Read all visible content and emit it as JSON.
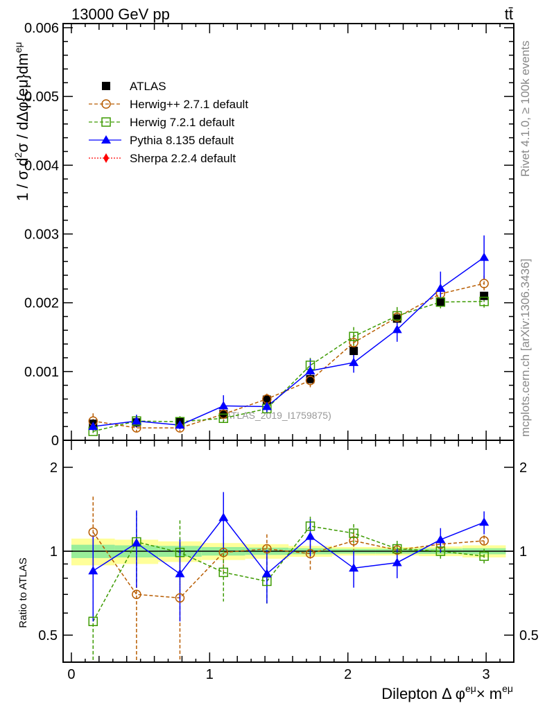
{
  "header": {
    "title": "13000 GeV pp",
    "process": "tt̄"
  },
  "side_text": {
    "rivet": "Rivet 4.1.0, ≥ 100k events",
    "mcplots": "mcplots.cern.ch [arXiv:1306.3436]"
  },
  "watermark": "(ATLAS_2019_I1759875)",
  "chart_data": [
    {
      "type": "scatter",
      "panel": "main",
      "ylabel_parts": [
        "1 / σ d",
        "2",
        "σ / dΔφ{eμ}dm",
        "eμ"
      ],
      "ylim": [
        0,
        0.00606
      ],
      "yticks": [
        0,
        0.001,
        0.002,
        0.003,
        0.004,
        0.005,
        0.006
      ],
      "ytick_labels": [
        "0",
        "0.001",
        "0.002",
        "0.003",
        "0.004",
        "0.005",
        "0.006"
      ],
      "xlim": [
        -0.06,
        3.2
      ],
      "x": [
        0.157,
        0.471,
        0.785,
        1.1,
        1.414,
        1.728,
        2.042,
        2.356,
        2.67,
        2.985
      ],
      "legend_position": "top-left",
      "series": [
        {
          "name": "ATLAS",
          "color": "#000000",
          "marker": "filled-square",
          "line": "none",
          "values": [
            0.00024,
            0.00026,
            0.00027,
            0.00038,
            0.00059,
            0.00089,
            0.0013,
            0.00177,
            0.00201,
            0.0021
          ]
        },
        {
          "name": "Herwig++ 2.7.1 default",
          "color": "#b85c00",
          "marker": "open-circle",
          "line": "dashed",
          "values": [
            0.00028,
            0.00018,
            0.00018,
            0.00038,
            0.0006,
            0.00087,
            0.00142,
            0.00179,
            0.00213,
            0.00228
          ]
        },
        {
          "name": "Herwig 7.2.1 default",
          "color": "#3c9a00",
          "marker": "open-square",
          "line": "dashed",
          "values": [
            0.00013,
            0.00028,
            0.00027,
            0.00032,
            0.00046,
            0.00109,
            0.00151,
            0.00181,
            0.00201,
            0.00202
          ]
        },
        {
          "name": "Pythia 8.135 default",
          "color": "#0000ff",
          "marker": "filled-triangle",
          "line": "solid",
          "values": [
            0.0002,
            0.00028,
            0.00022,
            0.0005,
            0.00049,
            0.00101,
            0.00113,
            0.00161,
            0.00221,
            0.00266
          ]
        },
        {
          "name": "Sherpa 2.2.4 default",
          "color": "#ff0000",
          "marker": "filled-diamond",
          "line": "dotted",
          "values": []
        }
      ]
    },
    {
      "type": "scatter",
      "panel": "ratio",
      "ylabel": "Ratio to ATLAS",
      "xlabel_parts": [
        "Dilepton Δ φ",
        "eμ",
        "× m",
        "eμ"
      ],
      "yscale": "log",
      "ylim": [
        0.4,
        2.5
      ],
      "yticks": [
        0.5,
        1,
        2
      ],
      "ytick_labels": [
        "0.5",
        "1",
        "2"
      ],
      "xticks": [
        0,
        1,
        2,
        3
      ],
      "xtick_labels": [
        "0",
        "1",
        "2",
        "3"
      ],
      "atlas_band": {
        "total_rel_err": [
          0.11,
          0.1,
          0.085,
          0.07,
          0.06,
          0.045,
          0.035,
          0.035,
          0.04,
          0.05
        ],
        "stat_rel_err": [
          0.055,
          0.05,
          0.045,
          0.035,
          0.03,
          0.025,
          0.02,
          0.02,
          0.022,
          0.025
        ],
        "colors": {
          "total": "#ffff99",
          "stat": "#99ee99"
        }
      },
      "series": [
        {
          "name": "Herwig++ 2.7.1 default",
          "values": [
            1.17,
            0.7,
            0.68,
            0.99,
            1.02,
            0.98,
            1.09,
            1.01,
            1.06,
            1.09
          ],
          "rel_err": [
            0.4,
            0.3,
            0.28,
            0.14,
            0.13,
            0.13,
            0.08,
            0.06,
            0.06,
            0.05
          ]
        },
        {
          "name": "Herwig 7.2.1 default",
          "values": [
            0.56,
            1.08,
            0.99,
            0.84,
            0.78,
            1.23,
            1.16,
            1.02,
            1.0,
            0.96
          ],
          "rel_err": [
            0.2,
            0.3,
            0.3,
            0.18,
            0.14,
            0.1,
            0.09,
            0.07,
            0.06,
            0.06
          ]
        },
        {
          "name": "Pythia 8.135 default",
          "values": [
            0.85,
            1.07,
            0.83,
            1.32,
            0.83,
            1.13,
            0.87,
            0.91,
            1.1,
            1.27
          ],
          "rel_err": [
            0.29,
            0.33,
            0.27,
            0.31,
            0.18,
            0.17,
            0.13,
            0.11,
            0.11,
            0.12
          ]
        }
      ]
    }
  ]
}
